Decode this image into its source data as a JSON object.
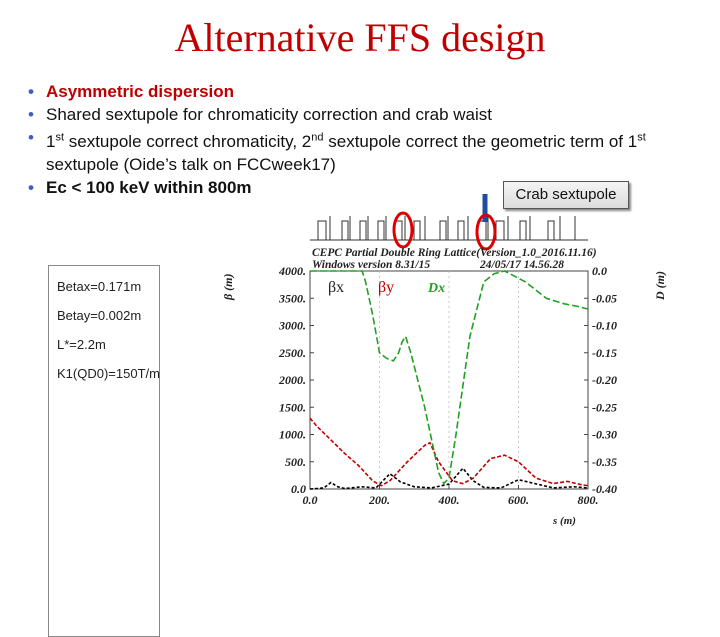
{
  "slide": {
    "title": "Alternative FFS design",
    "bullets": [
      {
        "text": "Asymmetric dispersion",
        "style": "red"
      },
      {
        "text": "Shared sextupole for chromaticity correction and crab waist",
        "style": "normal"
      },
      {
        "text_parts": [
          "1",
          "st",
          " sextupole correct chromaticity, 2",
          "nd",
          " sextupole correct the geometric term of 1",
          "st",
          " sextupole (Oide’s talk on FCCweek17)"
        ],
        "style": "normal"
      },
      {
        "text": "Ec < 100 keV within 800m",
        "style": "bold"
      }
    ],
    "callout": "Crab sextupole",
    "params": [
      "Betax=0.171m",
      "Betay=0.002m",
      "L*=2.2m",
      "K1(QD0)=150T/m"
    ]
  },
  "chart_data": {
    "type": "line",
    "header_line1": "CEPC Partial Double Ring Lattice(Version_1.0_2016.11.16)",
    "header_line2_left": "Windows version 8.31/15",
    "header_line2_right": "24/05/17  14.56.28",
    "xlabel": "s (m)",
    "ylabel_left": "β (m)",
    "ylabel_right": "D (m)",
    "xlim": [
      0,
      800
    ],
    "ylim_left": [
      0,
      4000
    ],
    "ylim_right": [
      -0.4,
      0.0
    ],
    "x_ticks": [
      "0.0",
      "200.",
      "400.",
      "600.",
      "800."
    ],
    "y_left_ticks": [
      "0.0",
      "500.",
      "1000.",
      "1500.",
      "2000.",
      "2500.",
      "3000.",
      "3500.",
      "4000."
    ],
    "y_right_ticks": [
      "0.0",
      "-0.05",
      "-0.10",
      "-0.15",
      "-0.20",
      "-0.25",
      "-0.30",
      "-0.35",
      "-0.40"
    ],
    "legend": [
      "βx",
      "βy",
      "Dx"
    ],
    "series": [
      {
        "name": "βx",
        "color": "#000000",
        "points": [
          [
            0,
            0
          ],
          [
            20,
            10
          ],
          [
            40,
            20
          ],
          [
            60,
            120
          ],
          [
            80,
            40
          ],
          [
            100,
            10
          ],
          [
            150,
            40
          ],
          [
            190,
            20
          ],
          [
            230,
            280
          ],
          [
            260,
            130
          ],
          [
            300,
            40
          ],
          [
            350,
            20
          ],
          [
            400,
            90
          ],
          [
            440,
            380
          ],
          [
            470,
            150
          ],
          [
            500,
            30
          ],
          [
            550,
            20
          ],
          [
            600,
            170
          ],
          [
            640,
            110
          ],
          [
            700,
            20
          ],
          [
            760,
            40
          ],
          [
            800,
            20
          ]
        ]
      },
      {
        "name": "βy",
        "color": "#c00000",
        "points": [
          [
            0,
            1300
          ],
          [
            20,
            1150
          ],
          [
            60,
            900
          ],
          [
            100,
            650
          ],
          [
            140,
            430
          ],
          [
            180,
            150
          ],
          [
            205,
            60
          ],
          [
            230,
            150
          ],
          [
            280,
            500
          ],
          [
            330,
            800
          ],
          [
            345,
            850
          ],
          [
            370,
            500
          ],
          [
            410,
            150
          ],
          [
            440,
            100
          ],
          [
            470,
            200
          ],
          [
            520,
            560
          ],
          [
            560,
            620
          ],
          [
            600,
            500
          ],
          [
            650,
            200
          ],
          [
            700,
            100
          ],
          [
            740,
            140
          ],
          [
            780,
            80
          ],
          [
            800,
            60
          ]
        ]
      },
      {
        "name": "Dx",
        "color": "#22a022",
        "axis": "right",
        "points": [
          [
            0,
            0.0
          ],
          [
            150,
            0.0
          ],
          [
            160,
            -0.02
          ],
          [
            180,
            -0.08
          ],
          [
            200,
            -0.15
          ],
          [
            220,
            -0.16
          ],
          [
            240,
            -0.165
          ],
          [
            255,
            -0.15
          ],
          [
            265,
            -0.13
          ],
          [
            275,
            -0.12
          ],
          [
            290,
            -0.15
          ],
          [
            330,
            -0.25
          ],
          [
            370,
            -0.37
          ],
          [
            385,
            -0.39
          ],
          [
            400,
            -0.38
          ],
          [
            420,
            -0.3
          ],
          [
            460,
            -0.12
          ],
          [
            500,
            -0.02
          ],
          [
            530,
            -0.005
          ],
          [
            560,
            0.0
          ],
          [
            620,
            -0.02
          ],
          [
            680,
            -0.05
          ],
          [
            730,
            -0.06
          ],
          [
            770,
            -0.065
          ],
          [
            800,
            -0.07
          ]
        ]
      }
    ]
  }
}
